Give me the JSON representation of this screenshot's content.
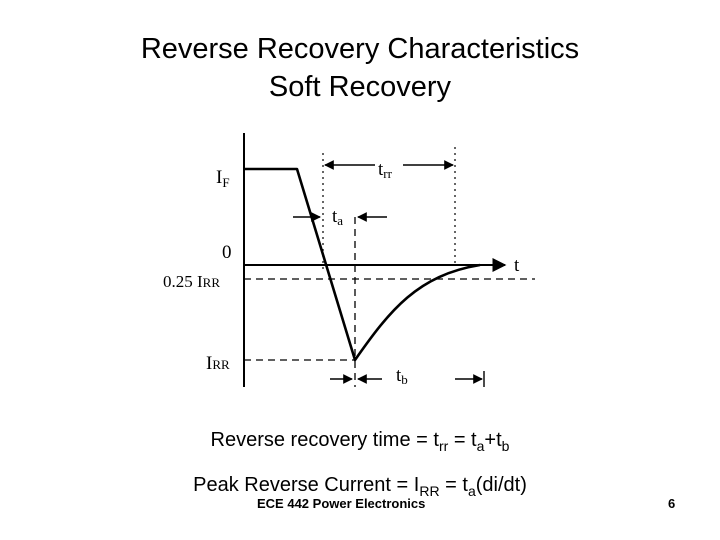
{
  "slide": {
    "title_line1": "Reverse Recovery Characteristics",
    "title_line2": "Soft Recovery",
    "footer_course": "ECE 442 Power Electronics",
    "page_number": "6"
  },
  "diagram": {
    "labels": {
      "i_f_main": "I",
      "i_f_sub": "F",
      "zero": "0",
      "quarter_irr_main": "0.25 I",
      "quarter_irr_sub": "RR",
      "irr_main": "I",
      "irr_sub": "RR",
      "t_axis": "t",
      "trr_main": "t",
      "trr_sub": "rr",
      "ta_main": "t",
      "ta_sub": "a",
      "tb_main": "t",
      "tb_sub": "b"
    }
  },
  "equations": {
    "rrt_prefix": "Reverse recovery time = t",
    "rrt_sub1": "rr",
    "rrt_mid": " = t",
    "rrt_sub2": "a",
    "rrt_plus": "+t",
    "rrt_sub3": "b",
    "prc_prefix": "Peak Reverse Current = I",
    "prc_sub1": "RR",
    "prc_mid": " = t",
    "prc_sub2": "a",
    "prc_suffix": "(di/dt)"
  }
}
